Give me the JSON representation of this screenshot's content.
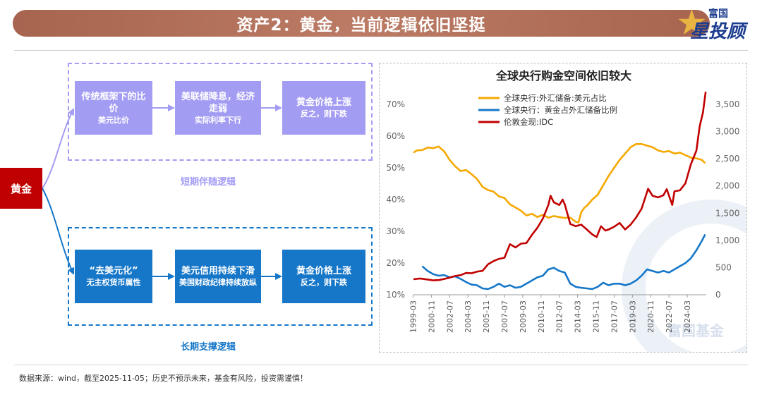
{
  "header": {
    "title": "资产2：黄金，当前逻辑依旧坚挺",
    "logo_top": "富国",
    "logo_main": "星投顾"
  },
  "flow": {
    "root": "黄金",
    "short": {
      "caption": "短期伴随逻辑",
      "boxes": [
        {
          "big": "传统框架下的比价",
          "small": "美元比价"
        },
        {
          "big": "美联储降息，经济走弱",
          "small": "实际利率下行"
        },
        {
          "big": "黄金价格上涨",
          "small": "反之，则下跌"
        }
      ]
    },
    "long": {
      "caption": "长期支撑逻辑",
      "boxes": [
        {
          "big": "“去美元化”",
          "small": "无主权货币属性"
        },
        {
          "big": "美元信用持续下滑",
          "small": "美国财政纪律持续放纵"
        },
        {
          "big": "黄金价格上涨",
          "small": "反之，则下跌"
        }
      ]
    }
  },
  "footer": {
    "source": "数据来源：wind，截至2025-11-05；历史不预示未来，基金有风险，投资需谨慎！"
  },
  "watermark": "富国基金",
  "colors": {
    "banner": "#b06e58",
    "gold_root": "#c00000",
    "short_logic": "#a39cf3",
    "long_logic": "#1677c9",
    "series_usd_share": "#f5a800",
    "series_gold_share": "#1677c9",
    "series_gold_price": "#c00000"
  },
  "chart_data": {
    "type": "line",
    "title": "全球央行购金空间依旧较大",
    "legend_position": "top-center",
    "grid": false,
    "x_ticks": [
      "1999-03",
      "2000-11",
      "2002-07",
      "2004-03",
      "2005-11",
      "2007-07",
      "2009-03",
      "2010-11",
      "2012-07",
      "2014-03",
      "2015-11",
      "2017-07",
      "2019-03",
      "2020-11",
      "2022-07",
      "2024-03"
    ],
    "y_left": {
      "ticks": [
        "10%",
        "20%",
        "30%",
        "40%",
        "50%",
        "60%",
        "70%"
      ],
      "lim": [
        10,
        70
      ],
      "unit": "%"
    },
    "y_right": {
      "ticks": [
        "0",
        "500",
        "1,000",
        "1,500",
        "2,000",
        "2,500",
        "3,000",
        "3,500"
      ],
      "lim": [
        0,
        3500
      ]
    },
    "series": [
      {
        "name": "全球央行:外汇储备:美元占比",
        "axis": "left",
        "points": [
          [
            1999.2,
            54.8
          ],
          [
            1999.5,
            55.5
          ],
          [
            2000.0,
            55.6
          ],
          [
            2000.5,
            56.4
          ],
          [
            2001.0,
            56.2
          ],
          [
            2001.5,
            56.7
          ],
          [
            2002.0,
            55.2
          ],
          [
            2002.5,
            52.5
          ],
          [
            2003.0,
            50.5
          ],
          [
            2003.5,
            49.0
          ],
          [
            2004.0,
            49.3
          ],
          [
            2004.5,
            48.0
          ],
          [
            2005.0,
            46.5
          ],
          [
            2005.5,
            44.0
          ],
          [
            2006.0,
            43.0
          ],
          [
            2006.5,
            42.5
          ],
          [
            2007.0,
            41.0
          ],
          [
            2007.5,
            40.5
          ],
          [
            2008.0,
            38.5
          ],
          [
            2008.5,
            37.5
          ],
          [
            2009.0,
            36.5
          ],
          [
            2009.5,
            35.0
          ],
          [
            2010.0,
            35.5
          ],
          [
            2010.5,
            34.5
          ],
          [
            2011.0,
            35.2
          ],
          [
            2011.5,
            34.3
          ],
          [
            2012.0,
            34.8
          ],
          [
            2012.5,
            34.5
          ],
          [
            2013.0,
            34.2
          ],
          [
            2013.5,
            34.3
          ],
          [
            2014.0,
            33.0
          ],
          [
            2014.25,
            32.8
          ],
          [
            2014.5,
            36.0
          ],
          [
            2014.8,
            37.5
          ],
          [
            2015.0,
            38.0
          ],
          [
            2015.5,
            40.0
          ],
          [
            2016.0,
            41.5
          ],
          [
            2016.5,
            44.5
          ],
          [
            2017.0,
            47.5
          ],
          [
            2017.5,
            50.0
          ],
          [
            2018.0,
            52.5
          ],
          [
            2018.5,
            54.5
          ],
          [
            2019.0,
            56.5
          ],
          [
            2019.5,
            57.5
          ],
          [
            2020.0,
            57.5
          ],
          [
            2020.5,
            57.0
          ],
          [
            2021.0,
            56.5
          ],
          [
            2021.5,
            55.5
          ],
          [
            2022.0,
            55.0
          ],
          [
            2022.5,
            55.3
          ],
          [
            2023.0,
            54.5
          ],
          [
            2023.5,
            54.8
          ],
          [
            2024.0,
            54.0
          ],
          [
            2024.5,
            53.2
          ],
          [
            2025.0,
            53.0
          ],
          [
            2025.5,
            52.5
          ],
          [
            2025.8,
            51.5
          ]
        ]
      },
      {
        "name": "全球央行：黄金占外汇储备比例",
        "axis": "left",
        "points": [
          [
            2000.0,
            19.0
          ],
          [
            2000.5,
            17.5
          ],
          [
            2001.0,
            16.5
          ],
          [
            2001.5,
            16.0
          ],
          [
            2002.0,
            16.2
          ],
          [
            2002.5,
            15.5
          ],
          [
            2003.0,
            15.8
          ],
          [
            2003.5,
            15.0
          ],
          [
            2004.0,
            14.0
          ],
          [
            2004.5,
            13.2
          ],
          [
            2005.0,
            13.0
          ],
          [
            2005.5,
            12.0
          ],
          [
            2006.0,
            11.8
          ],
          [
            2006.5,
            12.5
          ],
          [
            2007.0,
            13.5
          ],
          [
            2007.5,
            12.5
          ],
          [
            2008.0,
            13.0
          ],
          [
            2008.5,
            12.2
          ],
          [
            2009.0,
            12.5
          ],
          [
            2009.5,
            13.5
          ],
          [
            2010.0,
            14.5
          ],
          [
            2010.5,
            15.5
          ],
          [
            2011.0,
            16.0
          ],
          [
            2011.5,
            18.0
          ],
          [
            2012.0,
            18.5
          ],
          [
            2012.5,
            17.5
          ],
          [
            2013.0,
            17.0
          ],
          [
            2013.5,
            13.5
          ],
          [
            2014.0,
            12.5
          ],
          [
            2014.5,
            12.2
          ],
          [
            2015.0,
            12.0
          ],
          [
            2015.5,
            11.8
          ],
          [
            2016.0,
            12.5
          ],
          [
            2016.5,
            13.8
          ],
          [
            2017.0,
            13.0
          ],
          [
            2017.5,
            13.5
          ],
          [
            2018.0,
            13.5
          ],
          [
            2018.5,
            13.0
          ],
          [
            2019.0,
            13.5
          ],
          [
            2019.5,
            14.5
          ],
          [
            2020.0,
            16.0
          ],
          [
            2020.5,
            18.0
          ],
          [
            2021.0,
            17.5
          ],
          [
            2021.5,
            17.0
          ],
          [
            2022.0,
            17.5
          ],
          [
            2022.5,
            17.0
          ],
          [
            2023.0,
            18.0
          ],
          [
            2023.5,
            19.0
          ],
          [
            2024.0,
            20.0
          ],
          [
            2024.5,
            21.5
          ],
          [
            2025.0,
            24.0
          ],
          [
            2025.5,
            27.0
          ],
          [
            2025.8,
            29.0
          ]
        ]
      },
      {
        "name": "伦敦金现:IDC",
        "axis": "right",
        "points": [
          [
            1999.2,
            285
          ],
          [
            1999.8,
            300
          ],
          [
            2000.5,
            280
          ],
          [
            2001.0,
            265
          ],
          [
            2001.5,
            270
          ],
          [
            2002.0,
            290
          ],
          [
            2002.5,
            315
          ],
          [
            2003.0,
            345
          ],
          [
            2003.5,
            360
          ],
          [
            2004.0,
            400
          ],
          [
            2004.5,
            395
          ],
          [
            2005.0,
            425
          ],
          [
            2005.5,
            440
          ],
          [
            2006.0,
            560
          ],
          [
            2006.5,
            620
          ],
          [
            2007.0,
            660
          ],
          [
            2007.5,
            680
          ],
          [
            2008.0,
            930
          ],
          [
            2008.5,
            870
          ],
          [
            2009.0,
            940
          ],
          [
            2009.5,
            950
          ],
          [
            2010.0,
            1100
          ],
          [
            2010.5,
            1230
          ],
          [
            2011.0,
            1400
          ],
          [
            2011.5,
            1650
          ],
          [
            2011.7,
            1820
          ],
          [
            2012.0,
            1700
          ],
          [
            2012.5,
            1650
          ],
          [
            2012.8,
            1750
          ],
          [
            2013.0,
            1660
          ],
          [
            2013.5,
            1300
          ],
          [
            2014.0,
            1260
          ],
          [
            2014.5,
            1290
          ],
          [
            2015.0,
            1200
          ],
          [
            2015.5,
            1110
          ],
          [
            2015.9,
            1060
          ],
          [
            2016.3,
            1260
          ],
          [
            2016.7,
            1180
          ],
          [
            2017.0,
            1200
          ],
          [
            2017.5,
            1250
          ],
          [
            2018.0,
            1320
          ],
          [
            2018.5,
            1200
          ],
          [
            2019.0,
            1290
          ],
          [
            2019.5,
            1420
          ],
          [
            2020.0,
            1580
          ],
          [
            2020.6,
            1950
          ],
          [
            2021.0,
            1820
          ],
          [
            2021.5,
            1790
          ],
          [
            2022.0,
            1830
          ],
          [
            2022.3,
            1940
          ],
          [
            2022.8,
            1650
          ],
          [
            2023.0,
            1900
          ],
          [
            2023.5,
            1920
          ],
          [
            2024.0,
            2050
          ],
          [
            2024.5,
            2400
          ],
          [
            2025.0,
            2650
          ],
          [
            2025.3,
            3100
          ],
          [
            2025.6,
            3350
          ],
          [
            2025.85,
            3950
          ]
        ]
      }
    ]
  }
}
